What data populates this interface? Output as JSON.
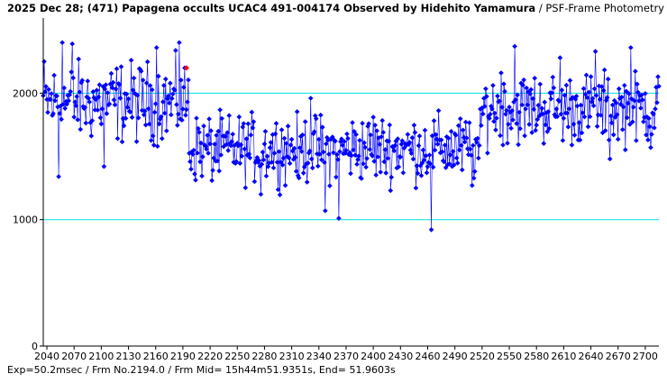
{
  "title": {
    "bold": "2025 Dec 28; (471) Papagena occults UCAC4 491-004174 Observed by Hidehito Yamamura",
    "normal": " / PSF-Frame Photometry /"
  },
  "footer": "Exp=50.2msec / Frm No.2194.0 / Frm Mid= 15h44m51.9351s,  End= 51.9603s",
  "chart_data": {
    "type": "scatter",
    "title": "2025 Dec 28; (471) Papagena occults UCAC4 491-004174 Observed by Hidehito Yamamura / PSF-Frame Photometry /",
    "xlim": [
      2036,
      2715
    ],
    "ylim": [
      0,
      2580
    ],
    "x_ticks": [
      2040,
      2070,
      2100,
      2130,
      2160,
      2190,
      2220,
      2250,
      2280,
      2310,
      2340,
      2370,
      2400,
      2430,
      2460,
      2490,
      2520,
      2550,
      2580,
      2610,
      2640,
      2670,
      2700
    ],
    "y_ticks": [
      0,
      1000,
      2000
    ],
    "reference_lines": [
      1000,
      2000
    ],
    "grid": false,
    "colors": {
      "series": "#0000ff",
      "highlight": "#ff0000",
      "reference": "#00e0e0",
      "axis": "#000000"
    },
    "highlight": {
      "x": 2194,
      "y": 2200
    },
    "segments": [
      {
        "from": 2036,
        "to": 2196,
        "level": 1930,
        "noise": 190
      },
      {
        "from": 2197,
        "to": 2519,
        "level": 1560,
        "noise": 160
      },
      {
        "from": 2520,
        "to": 2715,
        "level": 1880,
        "noise": 170
      }
    ],
    "series_samples": [
      {
        "x": 2036,
        "y": 1980
      },
      {
        "x": 2037,
        "y": 2250
      },
      {
        "x": 2053,
        "y": 1340
      },
      {
        "x": 2057,
        "y": 2400
      },
      {
        "x": 2068,
        "y": 2390
      },
      {
        "x": 2103,
        "y": 1420
      },
      {
        "x": 2161,
        "y": 2360
      },
      {
        "x": 2186,
        "y": 2400
      },
      {
        "x": 2207,
        "y": 1720
      },
      {
        "x": 2223,
        "y": 1390
      },
      {
        "x": 2276,
        "y": 1200
      },
      {
        "x": 2318,
        "y": 1330
      },
      {
        "x": 2331,
        "y": 1960
      },
      {
        "x": 2347,
        "y": 1070
      },
      {
        "x": 2362,
        "y": 1010
      },
      {
        "x": 2400,
        "y": 1810
      },
      {
        "x": 2464,
        "y": 920
      },
      {
        "x": 2475,
        "y": 1630
      },
      {
        "x": 2509,
        "y": 1270
      },
      {
        "x": 2541,
        "y": 2160
      },
      {
        "x": 2556,
        "y": 2370
      },
      {
        "x": 2606,
        "y": 2280
      },
      {
        "x": 2645,
        "y": 2330
      },
      {
        "x": 2661,
        "y": 1480
      },
      {
        "x": 2684,
        "y": 2360
      },
      {
        "x": 2706,
        "y": 1570
      },
      {
        "x": 2714,
        "y": 2130
      }
    ]
  }
}
